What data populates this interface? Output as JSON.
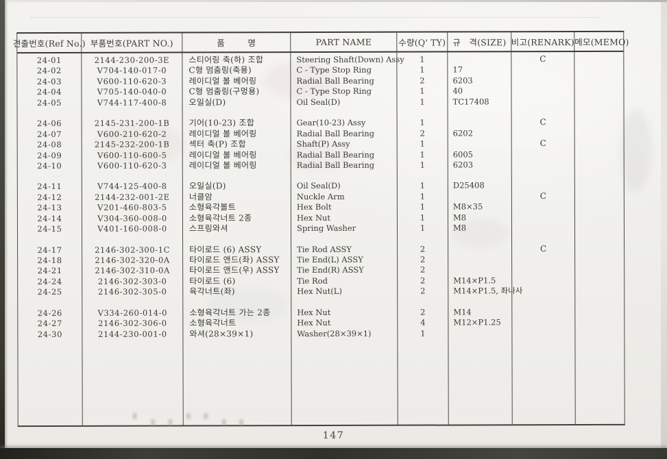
{
  "page": {
    "number": "147"
  },
  "table": {
    "headers": [
      "견출번호(Ref No.)",
      "부품번호(PART NO.)",
      "품        명",
      "PART NAME",
      "수량(Q' TY)",
      "규   격(SIZE)",
      "비고(RENARK)",
      "메모(MEMO)"
    ],
    "row_groups": [
      [
        {
          "ref": "24-01",
          "part_no": "2144-230-200-3E",
          "name_kr": "스티어링 축(하) 조합",
          "part_name": "Steering Shaft(Down) Assy",
          "qty": "1",
          "size": "",
          "remark": "C",
          "memo": ""
        },
        {
          "ref": "24-02",
          "part_no": "V704-140-017-0",
          "name_kr": "C형 멈춤링(축용)",
          "part_name": "C - Type Stop Ring",
          "qty": "1",
          "size": "17",
          "remark": "",
          "memo": ""
        },
        {
          "ref": "24-03",
          "part_no": "V600-110-620-3",
          "name_kr": "레이디얼 볼 베어링",
          "part_name": "Radial Ball Bearing",
          "qty": "2",
          "size": "6203",
          "remark": "",
          "memo": ""
        },
        {
          "ref": "24-04",
          "part_no": "V705-140-040-0",
          "name_kr": "C형 멈춤링(구멍용)",
          "part_name": "C - Type Stop Ring",
          "qty": "1",
          "size": "40",
          "remark": "",
          "memo": ""
        },
        {
          "ref": "24-05",
          "part_no": "V744-117-400-8",
          "name_kr": "오일실(D)",
          "part_name": "Oil Seal(D)",
          "qty": "1",
          "size": "TC17408",
          "remark": "",
          "memo": ""
        }
      ],
      [
        {
          "ref": "24-06",
          "part_no": "2145-231-200-1B",
          "name_kr": "기어(10-23) 조합",
          "part_name": "Gear(10-23) Assy",
          "qty": "1",
          "size": "",
          "remark": "C",
          "memo": ""
        },
        {
          "ref": "24-07",
          "part_no": "V600-210-620-2",
          "name_kr": "레이디얼 볼 베어링",
          "part_name": "Radial Ball Bearing",
          "qty": "2",
          "size": "6202",
          "remark": "",
          "memo": ""
        },
        {
          "ref": "24-08",
          "part_no": "2145-232-200-1B",
          "name_kr": "섹터 축(P) 조합",
          "part_name": "Shaft(P) Assy",
          "qty": "1",
          "size": "",
          "remark": "C",
          "memo": ""
        },
        {
          "ref": "24-09",
          "part_no": "V600-110-600-5",
          "name_kr": "레이디얼 볼 베어링",
          "part_name": "Radial Ball Bearing",
          "qty": "1",
          "size": "6005",
          "remark": "",
          "memo": ""
        },
        {
          "ref": "24-10",
          "part_no": "V600-110-620-3",
          "name_kr": "레이디얼 볼 베어링",
          "part_name": "Radial Ball Bearing",
          "qty": "1",
          "size": "6203",
          "remark": "",
          "memo": ""
        }
      ],
      [
        {
          "ref": "24-11",
          "part_no": "V744-125-400-8",
          "name_kr": "오일실(D)",
          "part_name": "Oil Seal(D)",
          "qty": "1",
          "size": "D25408",
          "remark": "",
          "memo": ""
        },
        {
          "ref": "24-12",
          "part_no": "2144-232-001-2E",
          "name_kr": "너클암",
          "part_name": "Nuckle Arm",
          "qty": "1",
          "size": "",
          "remark": "C",
          "memo": ""
        },
        {
          "ref": "24-13",
          "part_no": "V201-460-803-5",
          "name_kr": "소형육각볼트",
          "part_name": "Hex Bolt",
          "qty": "1",
          "size": "M8×35",
          "remark": "",
          "memo": ""
        },
        {
          "ref": "24-14",
          "part_no": "V304-360-008-0",
          "name_kr": "소형육각너트 2종",
          "part_name": "Hex Nut",
          "qty": "1",
          "size": "M8",
          "remark": "",
          "memo": ""
        },
        {
          "ref": "24-15",
          "part_no": "V401-160-008-0",
          "name_kr": "스프링와셔",
          "part_name": "Spring Washer",
          "qty": "1",
          "size": "M8",
          "remark": "",
          "memo": ""
        }
      ],
      [
        {
          "ref": "24-17",
          "part_no": "2146-302-300-1C",
          "name_kr": "타이로드 (6) ASSY",
          "part_name": "Tie Rod ASSY",
          "qty": "2",
          "size": "",
          "remark": "C",
          "memo": ""
        },
        {
          "ref": "24-18",
          "part_no": "2146-302-320-0A",
          "name_kr": "타이로드 앤드(좌) ASSY",
          "part_name": "Tie End(L) ASSY",
          "qty": "2",
          "size": "",
          "remark": "",
          "memo": ""
        },
        {
          "ref": "24-21",
          "part_no": "2146-302-310-0A",
          "name_kr": "타이로드 앤드(우) ASSY",
          "part_name": "Tie End(R) ASSY",
          "qty": "2",
          "size": "",
          "remark": "",
          "memo": ""
        },
        {
          "ref": "24-24",
          "part_no": "2146-302-303-0",
          "name_kr": "타이로드 (6)",
          "part_name": "Tie Rod",
          "qty": "2",
          "size": "M14×P1.5",
          "remark": "",
          "memo": ""
        },
        {
          "ref": "24-25",
          "part_no": "2146-302-305-0",
          "name_kr": "육각너트(좌)",
          "part_name": "Hex Nut(L)",
          "qty": "2",
          "size": "M14×P1.5, 좌나사",
          "remark": "",
          "memo": ""
        }
      ],
      [
        {
          "ref": "24-26",
          "part_no": "V334-260-014-0",
          "name_kr": "소형육각너트 가는 2종",
          "part_name": "Hex Nut",
          "qty": "2",
          "size": "M14",
          "remark": "",
          "memo": ""
        },
        {
          "ref": "24-27",
          "part_no": "2146-302-306-0",
          "name_kr": "소형육각너트",
          "part_name": "Hex Nut",
          "qty": "4",
          "size": "M12×P1.25",
          "remark": "",
          "memo": ""
        },
        {
          "ref": "24-30",
          "part_no": "2144-230-001-0",
          "name_kr": "와셔(28×39×1)",
          "part_name": "Washer(28×39×1)",
          "qty": "1",
          "size": "",
          "remark": "",
          "memo": ""
        }
      ]
    ]
  }
}
